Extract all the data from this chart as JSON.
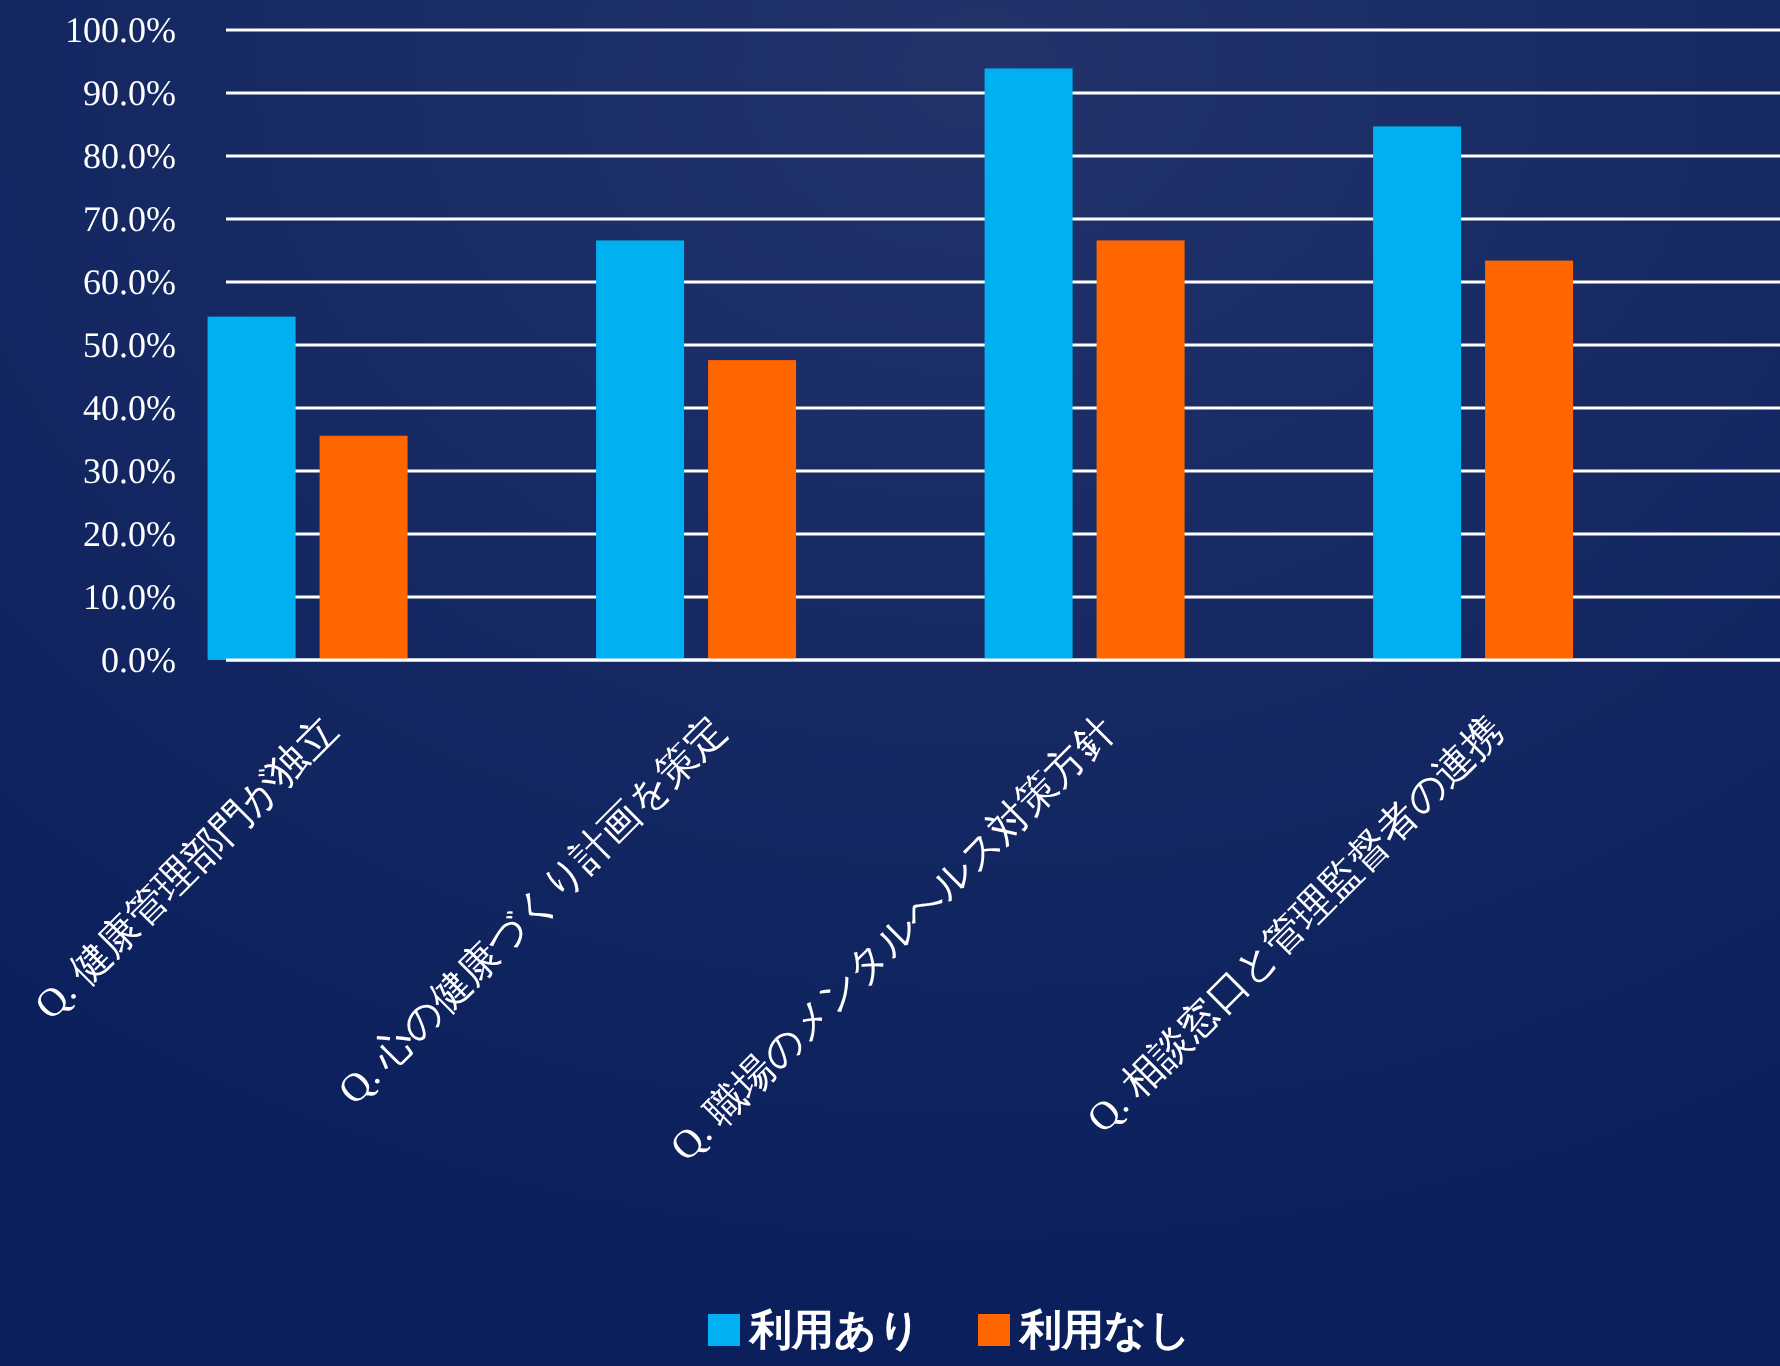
{
  "chart_data": {
    "type": "bar",
    "categories": [
      "Q. 健康管理部門が独立",
      "Q. 心の健康づくり計画を策定",
      "Q. 職場のメンタルヘルス対策方針",
      "Q. 相談窓口と管理監督者の連携"
    ],
    "series": [
      {
        "name": "利用あり",
        "color": "#00b0f0",
        "values": [
          54.5,
          66.6,
          93.9,
          84.7
        ]
      },
      {
        "name": "利用なし",
        "color": "#ff6600",
        "values": [
          35.6,
          47.6,
          66.6,
          63.4
        ]
      }
    ],
    "ylim": [
      0,
      100
    ],
    "yticks": [
      {
        "value": 0,
        "label": "0.0%"
      },
      {
        "value": 10,
        "label": "10.0%"
      },
      {
        "value": 20,
        "label": "20.0%"
      },
      {
        "value": 30,
        "label": "30.0%"
      },
      {
        "value": 40,
        "label": "40.0%"
      },
      {
        "value": 50,
        "label": "50.0%"
      },
      {
        "value": 60,
        "label": "60.0%"
      },
      {
        "value": 70,
        "label": "70.0%"
      },
      {
        "value": 80,
        "label": "80.0%"
      },
      {
        "value": 90,
        "label": "90.0%"
      },
      {
        "value": 100,
        "label": "100.0%"
      }
    ],
    "grid": "y",
    "legend": "bottom"
  }
}
